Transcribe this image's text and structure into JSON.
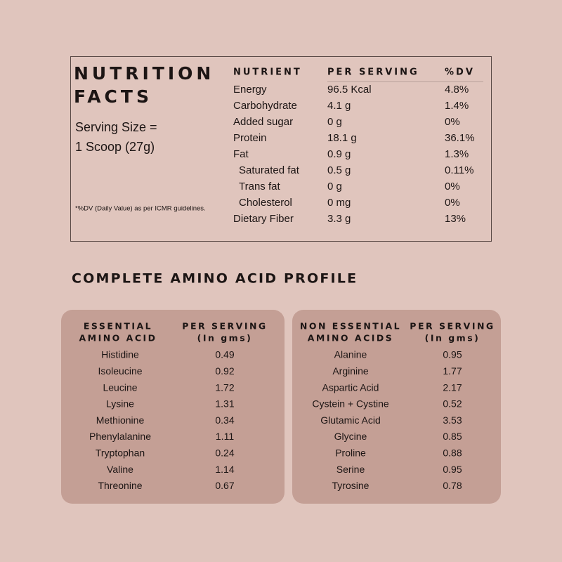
{
  "nutrition_facts": {
    "title": [
      "NUTRITION",
      "FACTS"
    ],
    "serving_size": [
      "Serving Size =",
      "1 Scoop (27g)"
    ],
    "footnote": "*%DV (Daily Value) as per ICMR guidelines.",
    "headers": [
      "NUTRIENT",
      "PER SERVING",
      "%DV"
    ],
    "rows": [
      {
        "cells": [
          "Energy",
          "96.5 Kcal",
          "4.8%"
        ]
      },
      {
        "cells": [
          "Carbohydrate",
          "4.1 g",
          "1.4%"
        ]
      },
      {
        "cells": [
          "Added sugar",
          "0 g",
          "0%"
        ]
      },
      {
        "cells": [
          "Protein",
          "18.1 g",
          "36.1%"
        ]
      },
      {
        "cells": [
          "Fat",
          "0.9 g",
          "1.3%"
        ],
        "sub_rows": [
          [
            "Saturated fat",
            "0.5 g",
            "0.11%"
          ],
          [
            "Trans fat",
            "0 g",
            "0%"
          ],
          [
            "Cholesterol",
            "0 mg",
            "0%"
          ]
        ]
      },
      {
        "cells": [
          "Dietary Fiber",
          "3.3 g",
          "13%"
        ]
      }
    ]
  },
  "amino_profile": {
    "title": "COMPLETE AMINO ACID PROFILE",
    "tables": [
      {
        "headers": [
          [
            "ESSENTIAL",
            "AMINO ACID"
          ],
          [
            "PER SERVING",
            "(In gms)"
          ]
        ],
        "rows": [
          [
            "Histidine",
            "0.49"
          ],
          [
            "Isoleucine",
            "0.92"
          ],
          [
            "Leucine",
            "1.72"
          ],
          [
            "Lysine",
            "1.31"
          ],
          [
            "Methionine",
            "0.34"
          ],
          [
            "Phenylalanine",
            "1.11"
          ],
          [
            "Tryptophan",
            "0.24"
          ],
          [
            "Valine",
            "1.14"
          ],
          [
            "Threonine",
            "0.67"
          ]
        ]
      },
      {
        "headers": [
          [
            "NON ESSENTIAL",
            "AMINO ACIDS"
          ],
          [
            "PER SERVING",
            "(In gms)"
          ]
        ],
        "rows": [
          [
            "Alanine",
            "0.95"
          ],
          [
            "Arginine",
            "1.77"
          ],
          [
            "Aspartic Acid",
            "2.17"
          ],
          [
            "Cystein + Cystine",
            "0.52"
          ],
          [
            "Glutamic Acid",
            "3.53"
          ],
          [
            "Glycine",
            "0.85"
          ],
          [
            "Proline",
            "0.88"
          ],
          [
            "Serine",
            "0.95"
          ],
          [
            "Tyrosine",
            "0.78"
          ]
        ]
      }
    ]
  }
}
